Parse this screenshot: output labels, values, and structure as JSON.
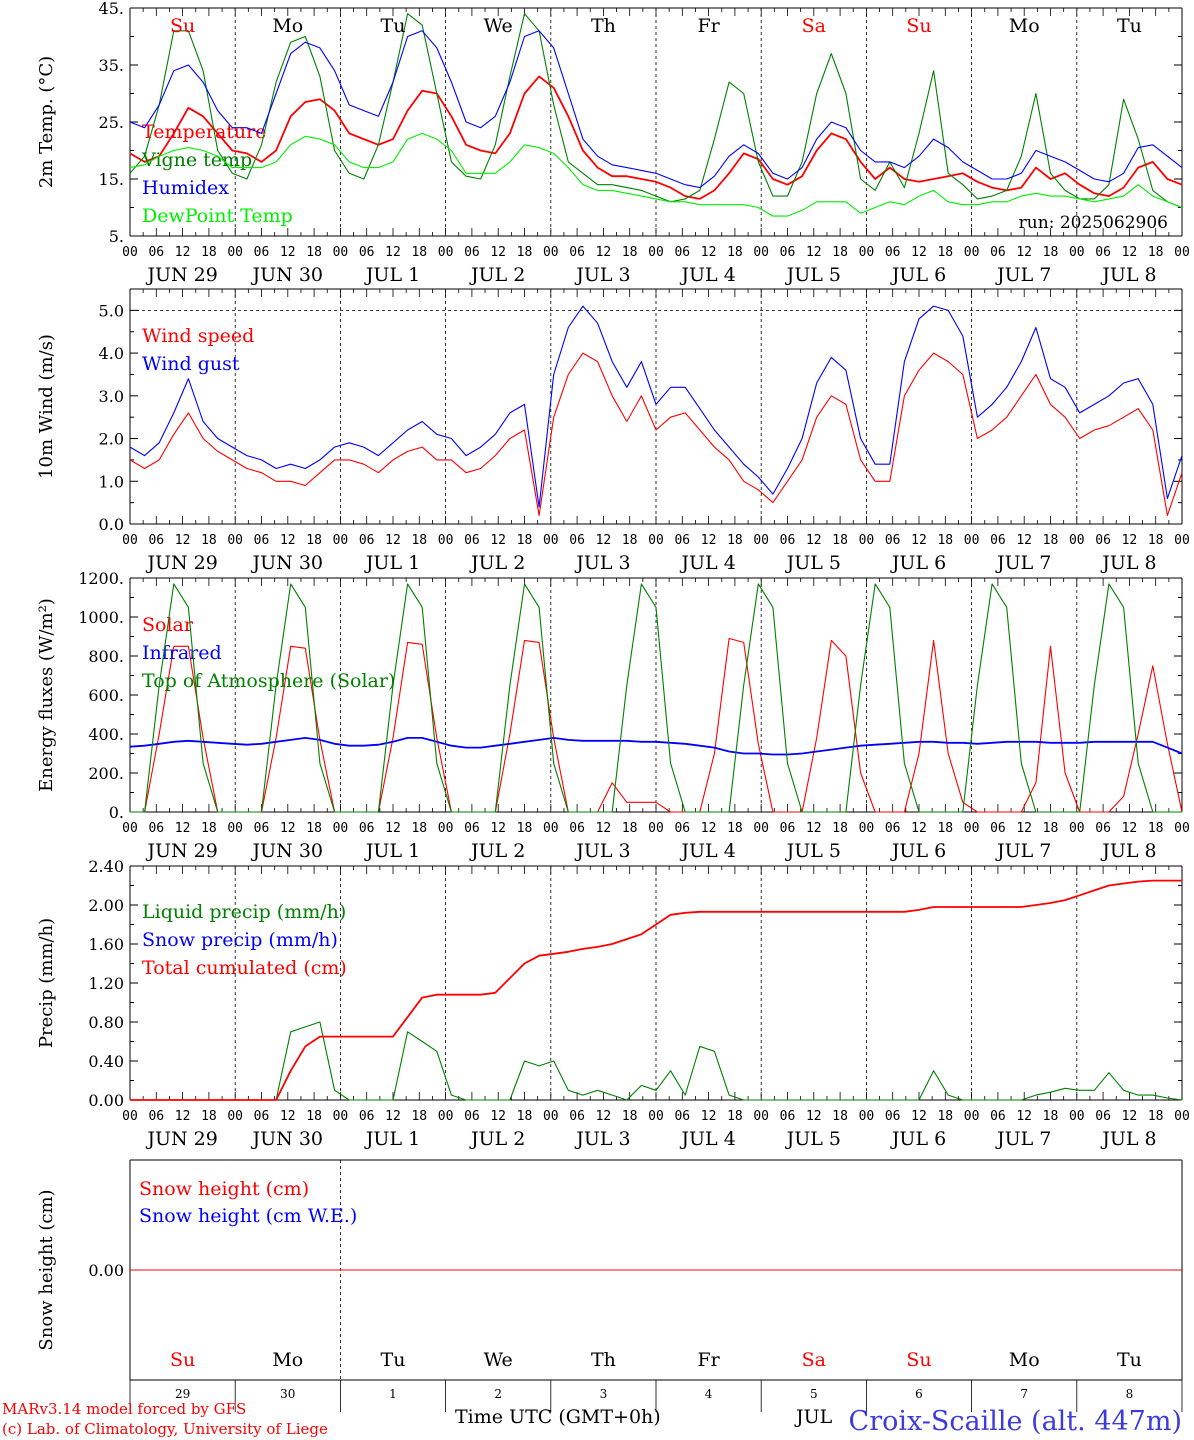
{
  "days": [
    {
      "abbr": "Su",
      "date": "JUN 29",
      "num": "29",
      "weekend": true
    },
    {
      "abbr": "Mo",
      "date": "JUN 30",
      "num": "30",
      "weekend": false
    },
    {
      "abbr": "Tu",
      "date": "JUL  1",
      "num": "1",
      "weekend": false
    },
    {
      "abbr": "We",
      "date": "JUL  2",
      "num": "2",
      "weekend": false
    },
    {
      "abbr": "Th",
      "date": "JUL  3",
      "num": "3",
      "weekend": false
    },
    {
      "abbr": "Fr",
      "date": "JUL  4",
      "num": "4",
      "weekend": false
    },
    {
      "abbr": "Sa",
      "date": "JUL  5",
      "num": "5",
      "weekend": true
    },
    {
      "abbr": "Su",
      "date": "JUL  6",
      "num": "6",
      "weekend": true
    },
    {
      "abbr": "Mo",
      "date": "JUL  7",
      "num": "7",
      "weekend": false
    },
    {
      "abbr": "Tu",
      "date": "JUL  8",
      "num": "8",
      "weekend": false
    }
  ],
  "hour_labels": [
    "00",
    "06",
    "12",
    "18"
  ],
  "end_hour_label": "00",
  "run_label": "run: 2025062906",
  "footer": {
    "model": "MARv3.14 model forced by GFS",
    "copyright": "(c) Lab. of Climatology, University of Liege",
    "xlabel": "Time UTC (GMT+0h)",
    "month": "JUL",
    "station": "Croix-Scaille (alt. 447m)"
  },
  "colors": {
    "red": "#ff0000",
    "green": "#008000",
    "blue": "#0000ff",
    "lightgreen": "#00ee00",
    "text": "#000000"
  },
  "chart_data": [
    {
      "type": "line",
      "ylabel": "2m Temp. (°C)",
      "ylim": [
        5,
        45
      ],
      "yticks": [
        "5.",
        "15.",
        "25.",
        "35.",
        "45."
      ],
      "x_unit": "hours since JUN 29 00 UTC, 3-hourly",
      "series": [
        {
          "name": "Temperature",
          "color": "red",
          "values": [
            19.5,
            18,
            19,
            23,
            27.5,
            26,
            23,
            20,
            19.5,
            18,
            20,
            26,
            28.5,
            29,
            27,
            23,
            22,
            21,
            22,
            27,
            30.5,
            30,
            26,
            21,
            20,
            19.5,
            23,
            30,
            33,
            31,
            26,
            20,
            17,
            15.5,
            15.5,
            15,
            14.5,
            13.5,
            12,
            11.5,
            13,
            16,
            19.5,
            18.5,
            15,
            14,
            15.5,
            20,
            23,
            22,
            18,
            15,
            17,
            15,
            14.5,
            15,
            15.5,
            16,
            14.5,
            13.5,
            13,
            13.5,
            17,
            15,
            16,
            14,
            12.5,
            12,
            13.5,
            17,
            18,
            15,
            14
          ]
        },
        {
          "name": "Vigne temp",
          "color": "green",
          "values": [
            16,
            19,
            28,
            41,
            41,
            34,
            20,
            16,
            15,
            21,
            32,
            39,
            40,
            33,
            20,
            16,
            15,
            21,
            32,
            44,
            42,
            30,
            18,
            15.5,
            15,
            21,
            33,
            44,
            41,
            28,
            18,
            16,
            14,
            14,
            13.5,
            13,
            12,
            11,
            11.5,
            13,
            22,
            32,
            30,
            18,
            12,
            12,
            18,
            30,
            37,
            30,
            15,
            13,
            18,
            13.5,
            23,
            34,
            16,
            14,
            11.5,
            12,
            13,
            19,
            30,
            16,
            13,
            11.5,
            11.5,
            14,
            29,
            22,
            13,
            11,
            10
          ]
        },
        {
          "name": "Humidex",
          "color": "blue",
          "values": [
            25,
            24,
            28,
            34,
            35,
            32,
            27,
            24,
            24,
            23,
            30,
            37,
            39,
            38,
            34,
            28,
            27,
            26,
            32,
            40,
            41,
            38,
            32,
            25,
            24,
            26,
            32,
            40,
            41,
            38,
            30,
            22,
            19,
            17.5,
            17,
            16.5,
            16,
            15,
            14,
            13.5,
            15.5,
            19,
            21,
            19.5,
            16,
            15,
            17,
            22,
            25,
            24,
            20,
            18,
            18,
            17,
            19,
            22,
            20.5,
            18,
            16.5,
            15,
            15,
            16,
            20,
            19,
            18,
            16.5,
            15,
            14.5,
            16,
            20.5,
            21,
            19,
            17
          ]
        },
        {
          "name": "DewPoint Temp",
          "color": "lightgreen",
          "values": [
            17,
            17.5,
            19,
            20,
            20.5,
            20,
            19,
            17,
            17,
            17,
            18,
            21,
            22.5,
            22,
            21,
            18,
            17,
            17,
            18,
            22,
            23,
            22,
            20,
            16,
            16,
            16,
            18,
            21,
            20.5,
            19.5,
            17,
            14,
            13,
            13,
            12.5,
            12,
            11.5,
            11,
            11,
            10.5,
            10.5,
            10.5,
            10.5,
            10,
            8.5,
            8.5,
            9.5,
            11,
            11,
            11,
            9,
            10,
            11,
            10.5,
            12,
            13,
            11,
            10.5,
            10.5,
            11,
            11,
            12,
            12.5,
            12,
            12,
            11.5,
            11,
            11.5,
            12,
            14,
            12,
            11,
            10
          ]
        }
      ]
    },
    {
      "type": "line",
      "ylabel": "10m Wind (m/s)",
      "ylim": [
        0,
        5.5
      ],
      "yticks": [
        "0.0",
        "1.0",
        "2.0",
        "3.0",
        "4.0",
        "5.0"
      ],
      "x_unit": "hours since JUN 29 00 UTC, 3-hourly",
      "series": [
        {
          "name": "Wind speed",
          "color": "red",
          "values": [
            1.5,
            1.3,
            1.5,
            2.1,
            2.6,
            2.0,
            1.7,
            1.5,
            1.3,
            1.2,
            1.0,
            1.0,
            0.9,
            1.2,
            1.5,
            1.5,
            1.4,
            1.2,
            1.5,
            1.7,
            1.8,
            1.5,
            1.5,
            1.2,
            1.3,
            1.6,
            2.0,
            2.2,
            0.2,
            2.5,
            3.5,
            4.0,
            3.8,
            3.0,
            2.4,
            3.0,
            2.2,
            2.5,
            2.6,
            2.2,
            1.8,
            1.5,
            1.0,
            0.8,
            0.5,
            1.0,
            1.5,
            2.5,
            3.0,
            2.8,
            1.5,
            1.0,
            1.0,
            3.0,
            3.6,
            4.0,
            3.8,
            3.5,
            2.0,
            2.2,
            2.5,
            3.0,
            3.5,
            2.8,
            2.5,
            2.0,
            2.2,
            2.3,
            2.5,
            2.7,
            2.2,
            0.2,
            1.2
          ]
        },
        {
          "name": "Wind gust",
          "color": "blue",
          "values": [
            1.8,
            1.6,
            1.9,
            2.6,
            3.4,
            2.4,
            2.0,
            1.8,
            1.6,
            1.5,
            1.3,
            1.4,
            1.3,
            1.5,
            1.8,
            1.9,
            1.8,
            1.6,
            1.9,
            2.2,
            2.4,
            2.1,
            2.0,
            1.6,
            1.8,
            2.1,
            2.6,
            2.8,
            0.4,
            3.5,
            4.6,
            5.1,
            4.7,
            3.8,
            3.2,
            3.8,
            2.8,
            3.2,
            3.2,
            2.7,
            2.2,
            1.8,
            1.4,
            1.1,
            0.7,
            1.3,
            2.0,
            3.3,
            3.9,
            3.6,
            2.0,
            1.4,
            1.4,
            3.8,
            4.8,
            5.1,
            5.0,
            4.4,
            2.5,
            2.8,
            3.2,
            3.8,
            4.6,
            3.4,
            3.2,
            2.6,
            2.8,
            3.0,
            3.3,
            3.4,
            2.8,
            0.6,
            1.6
          ]
        }
      ]
    },
    {
      "type": "line",
      "ylabel": "Energy fluxes (W/m²)",
      "ylim": [
        0,
        1200
      ],
      "yticks": [
        "0.",
        "200.",
        "400.",
        "600.",
        "800.",
        "1000.",
        "1200."
      ],
      "x_unit": "hours since JUN 29 00 UTC, 3-hourly",
      "series": [
        {
          "name": "Solar",
          "color": "red",
          "values": [
            0,
            0,
            400,
            850,
            850,
            380,
            0,
            0,
            0,
            0,
            380,
            850,
            840,
            370,
            0,
            0,
            0,
            0,
            380,
            870,
            860,
            380,
            0,
            0,
            0,
            0,
            400,
            880,
            870,
            380,
            0,
            0,
            0,
            150,
            50,
            50,
            50,
            0,
            0,
            0,
            300,
            890,
            870,
            350,
            0,
            0,
            0,
            380,
            880,
            800,
            200,
            0,
            0,
            0,
            300,
            880,
            300,
            50,
            0,
            0,
            0,
            0,
            150,
            850,
            200,
            0,
            0,
            0,
            80,
            400,
            750,
            350,
            0
          ]
        },
        {
          "name": "Infrared",
          "color": "blue",
          "values": [
            335,
            340,
            350,
            360,
            365,
            360,
            355,
            350,
            345,
            350,
            360,
            370,
            380,
            370,
            350,
            340,
            340,
            345,
            360,
            380,
            380,
            360,
            340,
            330,
            330,
            340,
            350,
            360,
            370,
            380,
            370,
            365,
            365,
            365,
            365,
            360,
            360,
            355,
            350,
            340,
            330,
            310,
            300,
            300,
            295,
            295,
            300,
            310,
            320,
            330,
            340,
            345,
            350,
            355,
            360,
            360,
            355,
            355,
            350,
            355,
            360,
            360,
            360,
            355,
            355,
            355,
            360,
            360,
            360,
            360,
            360,
            330,
            300
          ]
        },
        {
          "name": "Top of Atmosphere (Solar)",
          "color": "green",
          "values": [
            0,
            0,
            650,
            1170,
            1050,
            250,
            0,
            0,
            0,
            0,
            650,
            1170,
            1050,
            250,
            0,
            0,
            0,
            0,
            650,
            1170,
            1050,
            250,
            0,
            0,
            0,
            0,
            650,
            1170,
            1050,
            250,
            0,
            0,
            0,
            0,
            650,
            1170,
            1050,
            250,
            0,
            0,
            0,
            0,
            650,
            1170,
            1050,
            250,
            0,
            0,
            0,
            0,
            650,
            1170,
            1050,
            250,
            0,
            0,
            0,
            0,
            650,
            1170,
            1050,
            250,
            0,
            0,
            0,
            0,
            650,
            1170,
            1050,
            250,
            0,
            0,
            0
          ]
        }
      ]
    },
    {
      "type": "line",
      "ylabel": "Precip (mm/h)",
      "ylim": [
        0,
        2.4
      ],
      "yticks": [
        "0.00",
        "0.40",
        "0.80",
        "1.20",
        "1.60",
        "2.00",
        "2.40"
      ],
      "x_unit": "hours since JUN 29 00 UTC, 3-hourly",
      "series": [
        {
          "name": "Liquid precip (mm/h)",
          "color": "green",
          "values": [
            0,
            0,
            0,
            0,
            0,
            0,
            0,
            0,
            0,
            0,
            0,
            0.7,
            0.75,
            0.8,
            0.1,
            0,
            0,
            0,
            0,
            0.7,
            0.6,
            0.5,
            0.05,
            0,
            0,
            0,
            0,
            0.4,
            0.35,
            0.4,
            0.1,
            0.05,
            0.1,
            0.05,
            0,
            0.15,
            0.1,
            0.3,
            0.05,
            0.55,
            0.5,
            0.05,
            0,
            0,
            0,
            0,
            0,
            0,
            0,
            0,
            0,
            0,
            0,
            0,
            0,
            0.3,
            0.05,
            0,
            0,
            0,
            0,
            0,
            0.05,
            0.08,
            0.12,
            0.1,
            0.1,
            0.28,
            0.1,
            0.05,
            0.05,
            0.02,
            0
          ]
        },
        {
          "name": "Snow precip (mm/h)",
          "color": "blue",
          "values": []
        },
        {
          "name": "Total cumulated (cm)",
          "color": "red",
          "values": [
            0,
            0,
            0,
            0,
            0,
            0,
            0,
            0,
            0,
            0,
            0,
            0.3,
            0.55,
            0.65,
            0.65,
            0.65,
            0.65,
            0.65,
            0.65,
            0.85,
            1.05,
            1.08,
            1.08,
            1.08,
            1.08,
            1.1,
            1.25,
            1.4,
            1.48,
            1.5,
            1.52,
            1.55,
            1.57,
            1.6,
            1.65,
            1.7,
            1.8,
            1.9,
            1.92,
            1.93,
            1.93,
            1.93,
            1.93,
            1.93,
            1.93,
            1.93,
            1.93,
            1.93,
            1.93,
            1.93,
            1.93,
            1.93,
            1.93,
            1.93,
            1.95,
            1.98,
            1.98,
            1.98,
            1.98,
            1.98,
            1.98,
            1.98,
            2.0,
            2.02,
            2.05,
            2.1,
            2.15,
            2.2,
            2.22,
            2.24,
            2.25,
            2.25,
            2.25
          ]
        }
      ]
    },
    {
      "type": "line",
      "ylabel": "Snow height (cm)",
      "ylim": [
        -1,
        1
      ],
      "yticks": [
        "0.00"
      ],
      "x_unit": "hours since JUN 29 00 UTC, 3-hourly",
      "series": [
        {
          "name": "Snow height (cm)",
          "color": "red",
          "values": [
            0,
            0
          ]
        },
        {
          "name": "Snow height (cm W.E.)",
          "color": "blue",
          "values": []
        }
      ]
    }
  ]
}
